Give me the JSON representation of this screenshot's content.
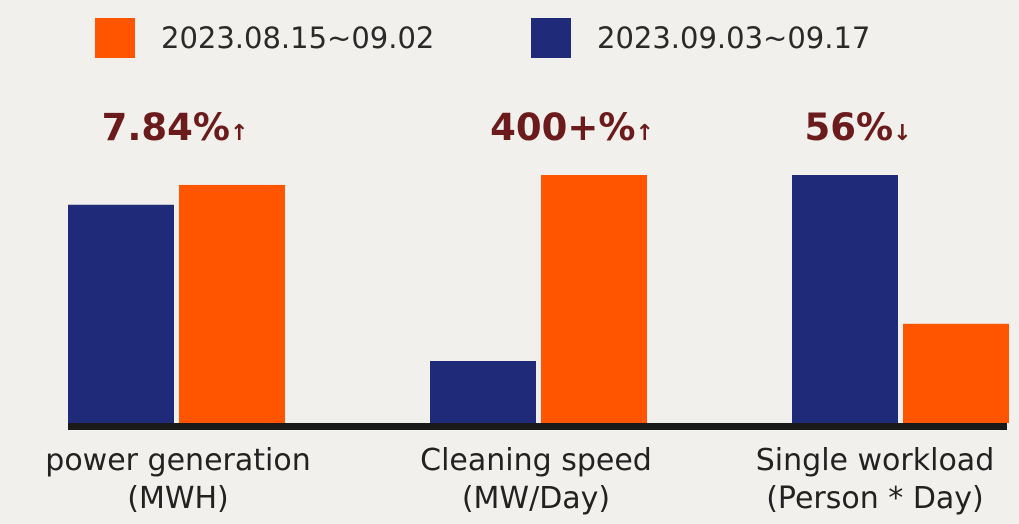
{
  "chart_data": {
    "type": "bar",
    "categories": [
      {
        "line1": "power generation",
        "line2": "(MWH)"
      },
      {
        "line1": "Cleaning speed",
        "line2": "(MW/Day)"
      },
      {
        "line1": "Single workload",
        "line2": "(Person * Day)"
      }
    ],
    "series": [
      {
        "name": "2023.09.03~09.17",
        "color": "#1f2a78",
        "values": [
          88,
          25,
          100
        ]
      },
      {
        "name": "2023.08.15~09.02",
        "color": "#ff5500",
        "values": [
          96,
          100,
          40
        ]
      }
    ],
    "changes": [
      {
        "text": "7.84%",
        "arrow": "↑"
      },
      {
        "text": "400+%",
        "arrow": "↑"
      },
      {
        "text": "56%",
        "arrow": "↓"
      }
    ],
    "ylim": [
      0,
      100
    ],
    "legend_order": [
      1,
      0
    ],
    "legend_position": "top",
    "grid": false
  }
}
